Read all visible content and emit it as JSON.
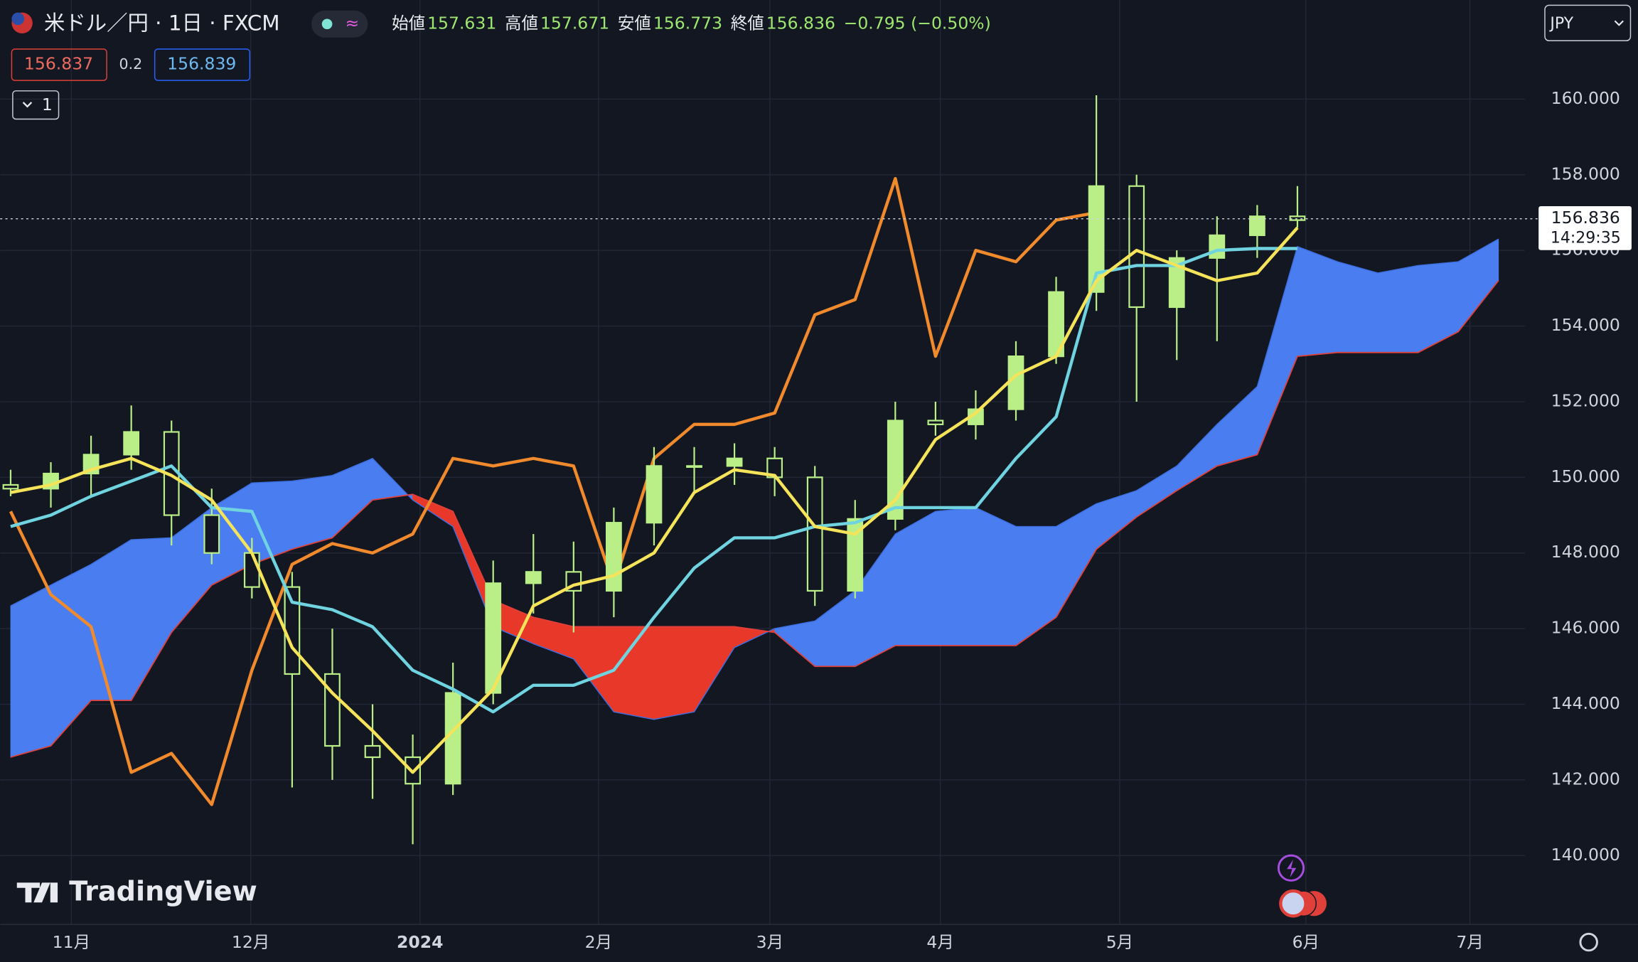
{
  "header": {
    "symbol": "米ドル／円 · 1日 · FXCM",
    "ohlc": [
      {
        "label": "始値",
        "value": "157.631"
      },
      {
        "label": "高値",
        "value": "157.671"
      },
      {
        "label": "安値",
        "value": "156.773"
      },
      {
        "label": "終値",
        "value": "156.836"
      }
    ],
    "change": "−0.795 (−0.50%)"
  },
  "toolbar": {
    "sell": "156.837",
    "spread": "0.2",
    "buy": "156.839",
    "collapse": "1",
    "currency": "JPY"
  },
  "watermark": "TradingView",
  "chart_data": {
    "type": "candlestick",
    "xlim": [
      -0.26,
      37.66
    ],
    "ylim": [
      138.18,
      162.62
    ],
    "xticks": [
      {
        "value": 1.51,
        "label": "11月"
      },
      {
        "value": 5.97,
        "label": "12月"
      },
      {
        "value": 10.18,
        "label": "2024"
      },
      {
        "value": 14.62,
        "label": "2月"
      },
      {
        "value": 18.88,
        "label": "3月"
      },
      {
        "value": 23.12,
        "label": "4月"
      },
      {
        "value": 27.58,
        "label": "5月"
      },
      {
        "value": 32.21,
        "label": "6月"
      },
      {
        "value": 36.29,
        "label": "7月"
      }
    ],
    "yticks": [
      {
        "value": 140,
        "label": "140.000"
      },
      {
        "value": 142,
        "label": "142.000"
      },
      {
        "value": 144,
        "label": "144.000"
      },
      {
        "value": 146,
        "label": "146.000"
      },
      {
        "value": 148,
        "label": "148.000"
      },
      {
        "value": 150,
        "label": "150.000"
      },
      {
        "value": 152,
        "label": "152.000"
      },
      {
        "value": 154,
        "label": "154.000"
      },
      {
        "value": 156,
        "label": "156.000"
      },
      {
        "value": 158,
        "label": "158.000"
      },
      {
        "value": 160,
        "label": "160.000"
      }
    ],
    "grid": true,
    "candle_color": "#b9ef86",
    "open": [
      149.8,
      149.7,
      150.1,
      150.6,
      151.2,
      149.0,
      148.0,
      147.1,
      144.8,
      142.9,
      142.6,
      141.9,
      144.3,
      147.2,
      147.5,
      147.0,
      148.8,
      150.3,
      150.3,
      150.5,
      150.0,
      147.0,
      148.9,
      151.5,
      151.4,
      151.8,
      153.2,
      154.9,
      157.7,
      154.5,
      155.8,
      156.4,
      156.9,
      null,
      null,
      null,
      null,
      null
    ],
    "high": [
      150.2,
      150.4,
      151.1,
      151.9,
      151.5,
      149.7,
      148.4,
      147.5,
      146.0,
      144.0,
      143.2,
      145.1,
      147.8,
      148.5,
      148.3,
      149.2,
      150.8,
      150.8,
      150.9,
      150.8,
      150.3,
      149.4,
      152.0,
      152.0,
      152.3,
      153.6,
      155.3,
      160.1,
      158.0,
      156.0,
      156.9,
      157.2,
      157.7,
      null,
      null,
      null,
      null,
      null
    ],
    "low": [
      149.5,
      149.2,
      149.5,
      150.2,
      148.2,
      147.7,
      146.8,
      141.8,
      142.0,
      141.5,
      140.3,
      141.6,
      144.0,
      146.4,
      145.9,
      146.3,
      148.2,
      149.6,
      149.8,
      149.5,
      146.6,
      146.8,
      148.6,
      151.1,
      151.0,
      151.5,
      153.0,
      154.4,
      152.0,
      153.1,
      153.6,
      155.8,
      156.6,
      null,
      null,
      null,
      null,
      null
    ],
    "close": [
      149.7,
      150.1,
      150.6,
      151.2,
      149.0,
      148.0,
      147.1,
      144.8,
      142.9,
      142.6,
      141.9,
      144.3,
      147.2,
      147.5,
      147.0,
      148.8,
      150.3,
      150.3,
      150.5,
      150.0,
      147.0,
      148.9,
      151.5,
      151.4,
      151.8,
      153.2,
      154.9,
      157.7,
      154.5,
      155.8,
      156.4,
      156.9,
      156.8,
      null,
      null,
      null,
      null,
      null
    ],
    "series": [
      {
        "color": "#f5e35a",
        "values": [
          149.6,
          149.8,
          150.2,
          150.5,
          150.05,
          149.4,
          148.0,
          145.5,
          144.3,
          143.3,
          142.2,
          143.3,
          144.4,
          146.6,
          147.15,
          147.4,
          148.0,
          149.6,
          150.2,
          150.05,
          148.7,
          148.5,
          149.4,
          151.0,
          151.7,
          152.7,
          153.2,
          155.2,
          156.0,
          155.6,
          155.2,
          155.4,
          156.6,
          null,
          null,
          null,
          null,
          null
        ]
      },
      {
        "color": "#6fd3e0",
        "values": [
          148.7,
          149.0,
          149.5,
          149.9,
          150.3,
          149.2,
          149.1,
          146.7,
          146.5,
          146.05,
          144.9,
          144.4,
          143.8,
          144.5,
          144.5,
          144.9,
          146.3,
          147.6,
          148.4,
          148.4,
          148.7,
          148.8,
          149.2,
          149.2,
          149.2,
          150.5,
          151.6,
          155.4,
          155.6,
          155.6,
          156.0,
          156.05,
          156.05,
          null,
          null,
          null,
          null,
          null
        ]
      },
      {
        "color": "#f08a2c",
        "values": [
          149.1,
          146.9,
          146.05,
          142.2,
          142.7,
          141.35,
          144.9,
          147.7,
          148.25,
          148.0,
          148.5,
          150.5,
          150.3,
          150.5,
          150.3,
          147.15,
          150.5,
          151.4,
          151.4,
          151.7,
          154.3,
          154.7,
          157.9,
          153.2,
          156.0,
          155.7,
          156.8,
          157.0,
          null,
          null,
          null,
          null,
          null,
          null,
          null,
          null,
          null,
          null
        ]
      },
      {
        "color": "#3e6fe0",
        "values": [
          146.6,
          147.15,
          147.7,
          148.35,
          148.4,
          149.2,
          149.85,
          149.9,
          150.05,
          150.5,
          149.4,
          148.7,
          146.05,
          145.6,
          145.2,
          143.8,
          143.6,
          143.8,
          145.5,
          146.0,
          146.2,
          147.0,
          148.5,
          149.1,
          149.2,
          148.7,
          148.7,
          149.3,
          149.65,
          150.3,
          151.4,
          152.4,
          156.1,
          155.7,
          155.4,
          155.6,
          155.7,
          156.3
        ]
      },
      {
        "color": "#e0403a",
        "values": [
          142.6,
          142.9,
          144.1,
          144.1,
          145.9,
          147.15,
          147.7,
          148.1,
          148.4,
          149.4,
          149.55,
          149.1,
          146.75,
          146.3,
          146.05,
          146.05,
          146.05,
          146.05,
          146.05,
          145.9,
          145.0,
          145.0,
          145.55,
          145.55,
          145.55,
          145.55,
          146.3,
          148.1,
          148.95,
          149.65,
          150.3,
          150.6,
          153.2,
          153.3,
          153.3,
          153.3,
          153.85,
          155.2
        ]
      }
    ],
    "cloud_up_color": "#4a7ef0",
    "cloud_down_color": "#e8382a",
    "last_price": 156.836,
    "countdown": "14:29:35"
  }
}
